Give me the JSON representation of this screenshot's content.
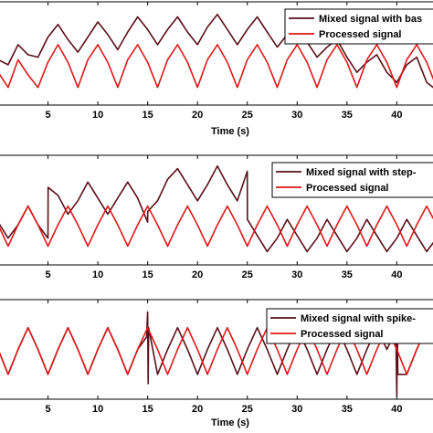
{
  "colors": {
    "mixed": "#5a0f1a",
    "processed": "#e01818",
    "axis": "#000000",
    "background": "#ffffff"
  },
  "chart_data": [
    {
      "type": "line",
      "xlabel": "Time (s)",
      "ylabel": "",
      "xlim": [
        0,
        44
      ],
      "ylim": [
        -1.5,
        2.6
      ],
      "xticks": [
        5,
        10,
        15,
        20,
        25,
        30,
        35,
        40
      ],
      "xtick_labels": [
        "5",
        "10",
        "15",
        "20",
        "25",
        "30",
        "35",
        "40"
      ],
      "legend_position": "top-right",
      "series": [
        {
          "name": "Mixed signal with bas",
          "color_key": "mixed",
          "x": [
            0,
            1,
            2,
            3,
            4,
            5,
            6,
            7,
            8,
            9,
            10,
            11,
            12,
            13,
            14,
            15,
            16,
            17,
            18,
            19,
            20,
            21,
            22,
            23,
            24,
            25,
            26,
            27,
            28,
            29,
            30,
            31,
            32,
            33,
            34,
            35,
            36,
            37,
            38,
            39,
            40,
            41,
            42,
            43,
            44
          ],
          "y": [
            0.3,
            0.1,
            0.9,
            0.5,
            0.4,
            1.2,
            1.7,
            1.1,
            0.6,
            1.2,
            1.8,
            1.3,
            0.7,
            1.4,
            2.0,
            1.5,
            0.9,
            1.5,
            2.0,
            1.4,
            0.9,
            1.6,
            2.1,
            1.5,
            0.9,
            1.5,
            2.0,
            1.4,
            0.8,
            1.3,
            1.7,
            1.0,
            0.4,
            0.8,
            1.1,
            0.4,
            -0.2,
            0.2,
            0.5,
            -0.2,
            -0.6,
            0.1,
            0.4,
            -0.6,
            -0.9
          ]
        },
        {
          "name": "Processed signal",
          "color_key": "processed",
          "x": [
            0,
            1,
            2,
            3,
            4,
            5,
            6,
            7,
            8,
            9,
            10,
            11,
            12,
            13,
            14,
            15,
            16,
            17,
            18,
            19,
            20,
            21,
            22,
            23,
            24,
            25,
            26,
            27,
            28,
            29,
            30,
            31,
            32,
            33,
            34,
            35,
            36,
            37,
            38,
            39,
            40,
            41,
            42,
            43,
            44
          ],
          "y": [
            -0.2,
            -0.8,
            0.3,
            -0.3,
            -0.8,
            0.2,
            0.9,
            0.2,
            -0.8,
            0.3,
            0.9,
            0.2,
            -0.8,
            0.3,
            0.9,
            0.2,
            -0.8,
            0.3,
            0.9,
            0.2,
            -0.8,
            0.3,
            0.9,
            0.2,
            -0.8,
            0.3,
            0.9,
            0.2,
            -0.8,
            0.3,
            0.9,
            0.2,
            -0.8,
            0.3,
            0.9,
            0.2,
            -0.8,
            0.3,
            0.9,
            0.2,
            -0.8,
            0.3,
            0.9,
            0.2,
            -0.8
          ]
        }
      ]
    },
    {
      "type": "line",
      "xlabel": "",
      "ylabel": "",
      "xlim": [
        0,
        44
      ],
      "ylim": [
        -1.3,
        2.8
      ],
      "xticks": [
        5,
        10,
        15,
        20,
        25,
        30,
        35,
        40
      ],
      "xtick_labels": [
        "5",
        "10",
        "15",
        "20",
        "25",
        "30",
        "35",
        "40"
      ],
      "legend_position": "top-right",
      "series": [
        {
          "name": "Mixed signal with step-",
          "color_key": "mixed",
          "x": [
            0,
            1,
            2,
            3,
            4,
            5,
            5.01,
            6,
            7,
            8,
            9,
            10,
            11,
            12,
            13,
            14,
            15,
            15.01,
            16,
            17,
            18,
            19,
            20,
            21,
            22,
            23,
            24,
            25,
            25.01,
            26,
            27,
            28,
            29,
            30,
            31,
            32,
            33,
            34,
            35,
            36,
            37,
            38,
            39,
            40,
            41,
            42,
            43,
            44
          ],
          "y": [
            0.3,
            -0.3,
            0.2,
            0.9,
            0.2,
            -0.3,
            1.6,
            1.3,
            0.6,
            1.1,
            1.8,
            1.2,
            0.6,
            1.2,
            1.8,
            1.2,
            0.3,
            0.7,
            1.1,
            1.9,
            2.3,
            1.7,
            1.1,
            1.7,
            2.4,
            1.7,
            1.1,
            2.2,
            0.4,
            -0.2,
            -0.8,
            -0.3,
            0.4,
            -0.2,
            -0.8,
            -0.3,
            0.4,
            -0.2,
            -0.8,
            -0.3,
            0.4,
            -0.2,
            -0.8,
            -0.3,
            0.4,
            -0.2,
            -0.8,
            -0.3
          ]
        },
        {
          "name": "Processed signal",
          "color_key": "processed",
          "x": [
            0,
            1,
            2,
            3,
            4,
            5,
            6,
            7,
            8,
            9,
            10,
            11,
            12,
            13,
            14,
            15,
            16,
            17,
            18,
            19,
            20,
            21,
            22,
            23,
            24,
            25,
            26,
            27,
            28,
            29,
            30,
            31,
            32,
            33,
            34,
            35,
            36,
            37,
            38,
            39,
            40,
            41,
            42,
            43,
            44
          ],
          "y": [
            0.2,
            -0.6,
            0.2,
            0.9,
            0.2,
            -0.6,
            0.2,
            0.9,
            0.2,
            -0.6,
            0.2,
            0.9,
            0.2,
            -0.6,
            0.2,
            0.9,
            0.2,
            -0.6,
            0.2,
            0.9,
            0.2,
            -0.6,
            0.2,
            0.9,
            0.2,
            -0.6,
            0.2,
            0.9,
            0.2,
            -0.6,
            0.2,
            0.9,
            0.2,
            -0.6,
            0.2,
            0.9,
            0.2,
            -0.6,
            0.2,
            0.9,
            0.2,
            -0.6,
            0.2,
            0.9,
            0.2
          ]
        }
      ]
    },
    {
      "type": "line",
      "xlabel": "Time (s)",
      "ylabel": "",
      "xlim": [
        0,
        44
      ],
      "ylim": [
        -1.4,
        1.8
      ],
      "xticks": [
        5,
        10,
        15,
        20,
        25,
        30,
        35,
        40
      ],
      "xtick_labels": [
        "5",
        "10",
        "15",
        "20",
        "25",
        "30",
        "35",
        "40"
      ],
      "legend_position": "top-right",
      "series": [
        {
          "name": "Mixed signal with spike-",
          "color_key": "mixed",
          "x": [
            0,
            1,
            2,
            3,
            4,
            5,
            6,
            7,
            8,
            9,
            10,
            11,
            12,
            13,
            14,
            14.9,
            15,
            15.05,
            15.1,
            16,
            17,
            18,
            19,
            20,
            21,
            22,
            23,
            24,
            25,
            26,
            27,
            28,
            29,
            30,
            31,
            32,
            33,
            34,
            35,
            36,
            37,
            38,
            39,
            39.9,
            40,
            40.05,
            40.1,
            41,
            42,
            43,
            44
          ],
          "y": [
            0.2,
            -0.6,
            0.2,
            0.9,
            0.2,
            -0.6,
            0.2,
            0.9,
            0.2,
            -0.6,
            0.2,
            0.9,
            0.2,
            -0.6,
            0.2,
            0.6,
            1.4,
            -0.9,
            0.9,
            -0.6,
            0.2,
            0.9,
            0.2,
            -0.6,
            0.2,
            0.9,
            0.2,
            -0.6,
            0.2,
            0.9,
            0.2,
            -0.6,
            0.2,
            0.9,
            0.2,
            -0.6,
            0.2,
            0.9,
            0.2,
            -0.6,
            0.2,
            0.9,
            0.2,
            0.8,
            -1.3,
            0.9,
            -0.6,
            -0.6,
            0.2,
            0.9,
            0.2
          ]
        },
        {
          "name": "Processed signal",
          "color_key": "processed",
          "x": [
            0,
            1,
            2,
            3,
            4,
            5,
            6,
            7,
            8,
            9,
            10,
            11,
            12,
            13,
            14,
            15,
            16,
            17,
            18,
            19,
            20,
            21,
            22,
            23,
            24,
            25,
            26,
            27,
            28,
            29,
            30,
            31,
            32,
            33,
            34,
            35,
            36,
            37,
            38,
            39,
            40,
            41,
            42,
            43,
            44
          ],
          "y": [
            0.2,
            -0.6,
            0.2,
            0.9,
            0.2,
            -0.6,
            0.2,
            0.9,
            0.2,
            -0.6,
            0.2,
            0.9,
            0.2,
            -0.6,
            0.2,
            0.9,
            0.2,
            -0.6,
            0.2,
            0.9,
            0.2,
            -0.6,
            0.2,
            0.9,
            0.2,
            -0.6,
            0.2,
            0.9,
            0.2,
            -0.6,
            0.2,
            0.9,
            0.2,
            -0.6,
            0.2,
            0.9,
            0.2,
            -0.6,
            0.2,
            0.9,
            0.2,
            -0.6,
            0.2,
            0.9,
            0.2
          ]
        }
      ]
    }
  ]
}
